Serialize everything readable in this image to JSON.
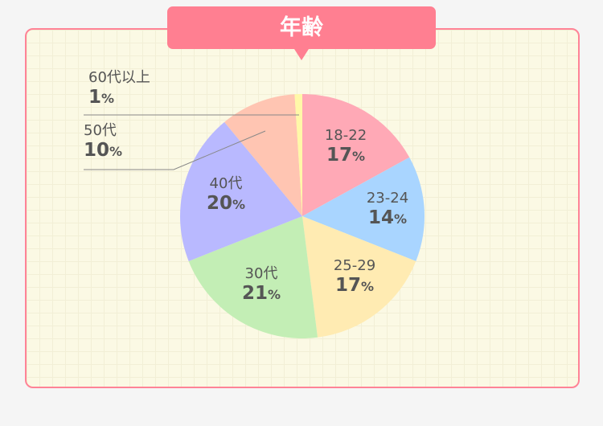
{
  "chart_data": {
    "type": "pie",
    "title": "年齢",
    "start": "top",
    "direction": "clockwise",
    "slices": [
      {
        "label": "18-22",
        "value": 17,
        "color": "#ffa9b6"
      },
      {
        "label": "23-24",
        "value": 14,
        "color": "#a9d5ff"
      },
      {
        "label": "25-29",
        "value": 17,
        "color": "#ffebb2"
      },
      {
        "label": "30代",
        "value": 21,
        "color": "#c3eeb5"
      },
      {
        "label": "40代",
        "value": 20,
        "color": "#b9b9ff"
      },
      {
        "label": "50代",
        "value": 10,
        "color": "#ffc5b2"
      },
      {
        "label": "60代以上",
        "value": 1,
        "color": "#fff8a8"
      }
    ],
    "unit": "%"
  },
  "colors": {
    "accent": "#ff7f91",
    "background": "#fbf9e4"
  }
}
